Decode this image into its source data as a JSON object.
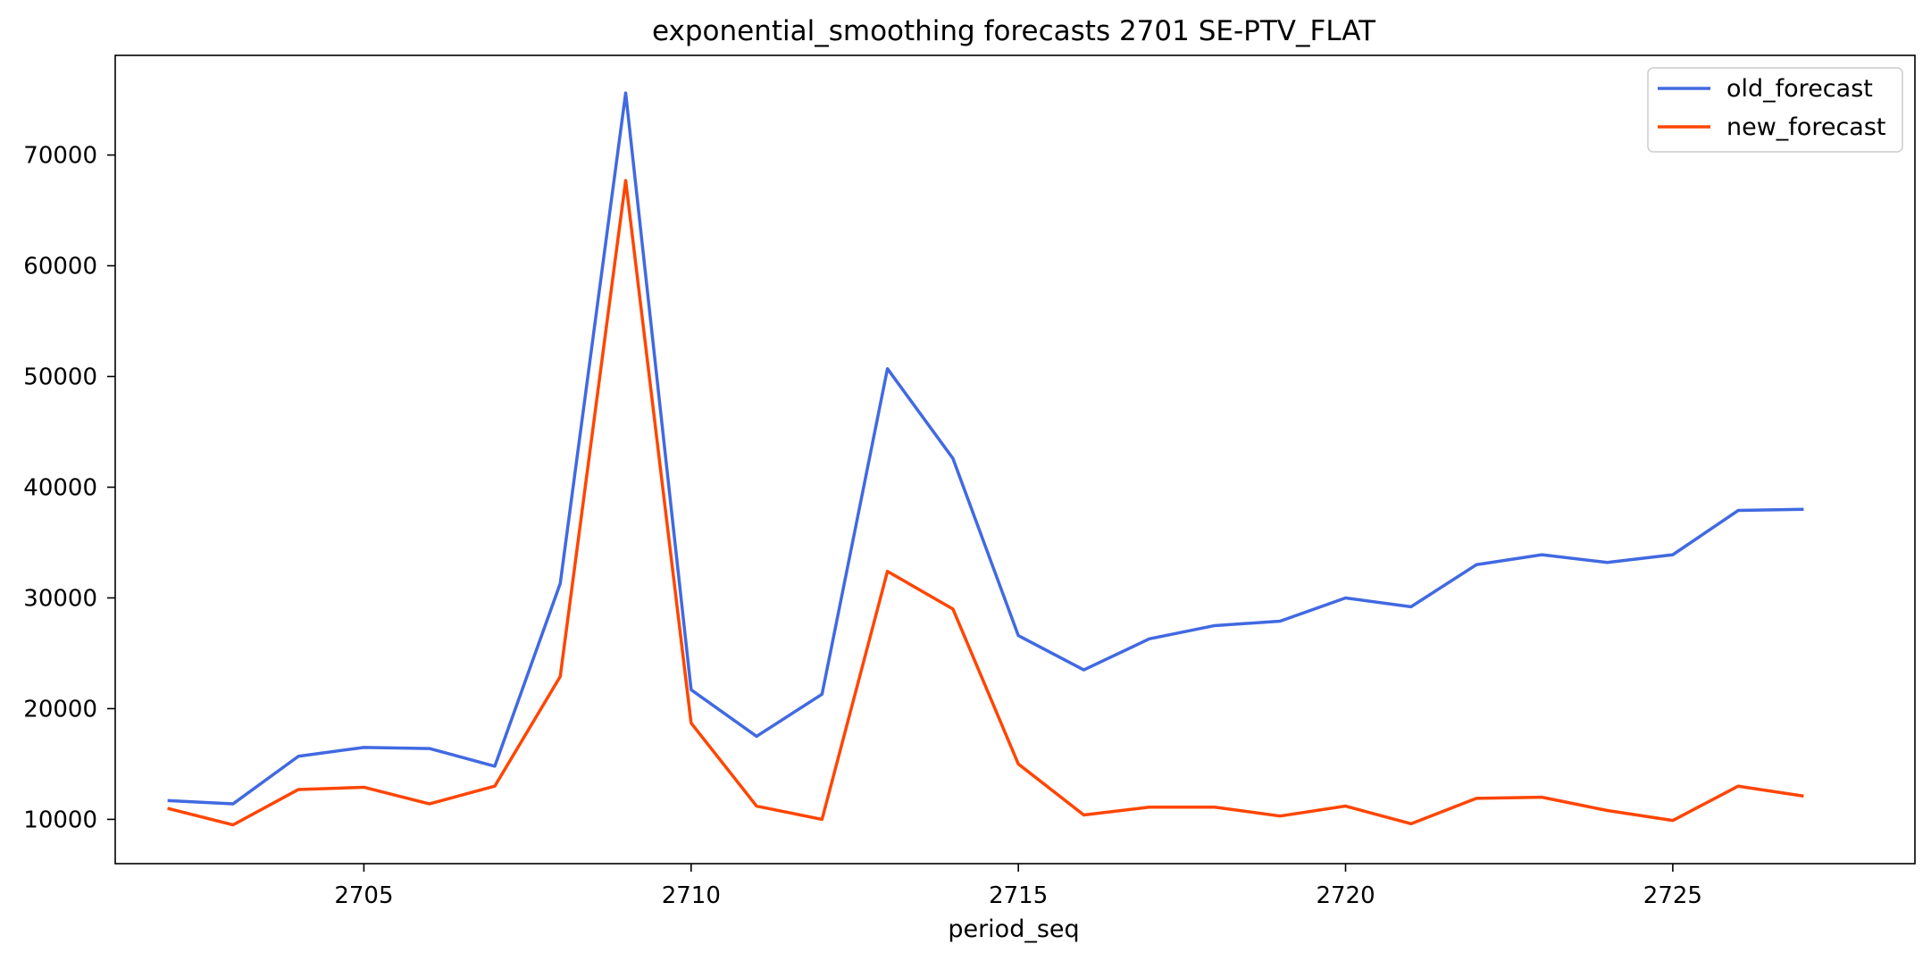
{
  "chart_data": {
    "type": "line",
    "title": "exponential_smoothing forecasts 2701 SE-PTV_FLAT",
    "xlabel": "period_seq",
    "ylabel": "",
    "x": [
      2702,
      2703,
      2704,
      2705,
      2706,
      2707,
      2708,
      2709,
      2710,
      2711,
      2712,
      2713,
      2714,
      2715,
      2716,
      2717,
      2718,
      2719,
      2720,
      2721,
      2722,
      2723,
      2724,
      2725,
      2726,
      2727
    ],
    "xlim": [
      2701.2,
      2728.7
    ],
    "ylim": [
      6000,
      79000
    ],
    "xticks": [
      2705,
      2710,
      2715,
      2720,
      2725
    ],
    "yticks": [
      10000,
      20000,
      30000,
      40000,
      50000,
      60000,
      70000
    ],
    "legend_position": "top-right",
    "series": [
      {
        "name": "old_forecast",
        "color": "#4169e1",
        "values": [
          11700,
          11400,
          15700,
          16500,
          16400,
          14800,
          31300,
          75600,
          21700,
          17500,
          21300,
          50700,
          42600,
          26600,
          23500,
          26300,
          27500,
          27900,
          30000,
          29200,
          33000,
          33900,
          33200,
          33900,
          37900,
          38000
        ]
      },
      {
        "name": "new_forecast",
        "color": "#ff4500",
        "values": [
          11000,
          9500,
          12700,
          12900,
          11400,
          13000,
          22900,
          67700,
          18700,
          11200,
          10000,
          32400,
          29000,
          15000,
          10400,
          11100,
          11100,
          10300,
          11200,
          9600,
          11900,
          12000,
          10800,
          9900,
          13000,
          12100
        ]
      }
    ]
  }
}
